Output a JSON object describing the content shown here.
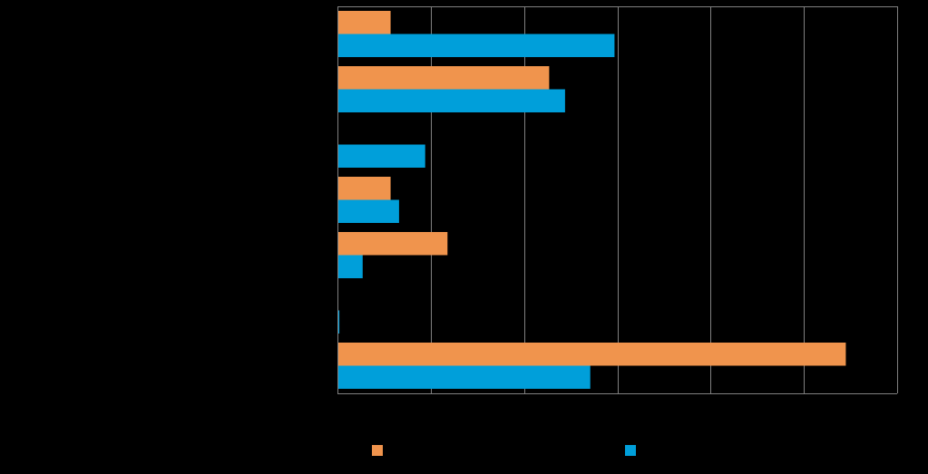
{
  "chart_data": {
    "type": "bar",
    "orientation": "horizontal",
    "title": "",
    "xlabel": "",
    "ylabel": "",
    "categories": [
      "",
      "",
      "",
      "",
      "",
      "",
      ""
    ],
    "xlim": [
      0,
      6
    ],
    "grid": true,
    "legend_position": "bottom",
    "series": [
      {
        "color": "#F0944D",
        "values": [
          0.57,
          2.27,
          null,
          0.57,
          1.18,
          null,
          5.45
        ]
      },
      {
        "color": "#009FDA",
        "values": [
          2.97,
          2.44,
          0.94,
          0.66,
          0.27,
          0.02,
          2.71
        ]
      }
    ]
  }
}
